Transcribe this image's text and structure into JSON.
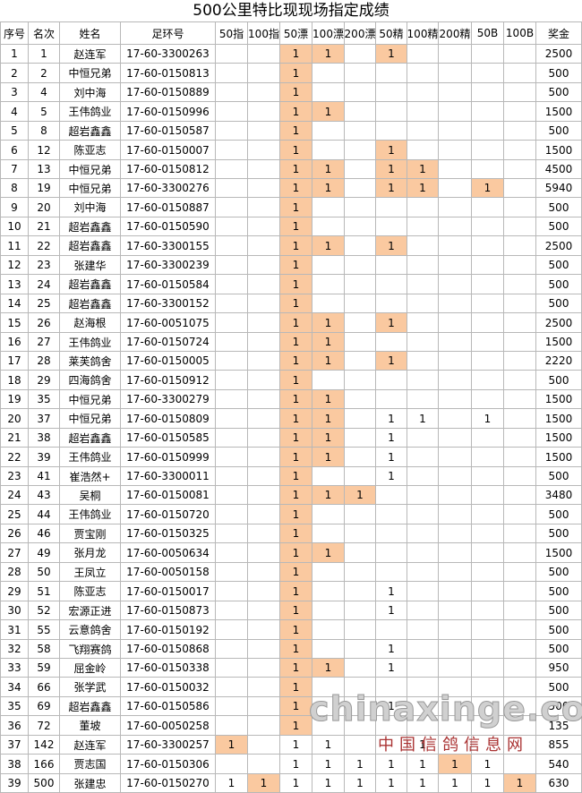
{
  "title": "500公里特比现现场指定成绩",
  "highlight_color": "#fac9a0",
  "table": {
    "header": [
      "序号",
      "名次",
      "姓名",
      "足环号",
      "50指",
      "100指",
      "50漂",
      "100漂",
      "200漂",
      "50精",
      "100精",
      "200精",
      "50B",
      "100B",
      "奖金"
    ],
    "rows": [
      {
        "cells": [
          "1",
          "1",
          "赵连军",
          "17-60-3300263",
          null,
          null,
          "1",
          "1",
          null,
          "1",
          null,
          null,
          null,
          null,
          "2500"
        ],
        "highlighted": [
          6,
          7,
          9
        ]
      },
      {
        "cells": [
          "2",
          "2",
          "中恒兄弟",
          "17-60-0150813",
          null,
          null,
          "1",
          null,
          null,
          null,
          null,
          null,
          null,
          null,
          "500"
        ],
        "highlighted": [
          6
        ]
      },
      {
        "cells": [
          "3",
          "4",
          "刘中海",
          "17-60-0150889",
          null,
          null,
          "1",
          null,
          null,
          null,
          null,
          null,
          null,
          null,
          "500"
        ],
        "highlighted": [
          6
        ]
      },
      {
        "cells": [
          "4",
          "5",
          "王伟鸽业",
          "17-60-0150996",
          null,
          null,
          "1",
          "1",
          null,
          null,
          null,
          null,
          null,
          null,
          "1500"
        ],
        "highlighted": [
          6,
          7
        ]
      },
      {
        "cells": [
          "5",
          "8",
          "超岩鑫鑫",
          "17-60-0150587",
          null,
          null,
          "1",
          null,
          null,
          null,
          null,
          null,
          null,
          null,
          "500"
        ],
        "highlighted": [
          6
        ]
      },
      {
        "cells": [
          "6",
          "12",
          "陈亚志",
          "17-60-0150007",
          null,
          null,
          "1",
          null,
          null,
          "1",
          null,
          null,
          null,
          null,
          "1500"
        ],
        "highlighted": [
          6,
          9
        ]
      },
      {
        "cells": [
          "7",
          "13",
          "中恒兄弟",
          "17-60-0150812",
          null,
          null,
          "1",
          "1",
          null,
          "1",
          "1",
          null,
          null,
          null,
          "4500"
        ],
        "highlighted": [
          6,
          7,
          9,
          10
        ]
      },
      {
        "cells": [
          "8",
          "19",
          "中恒兄弟",
          "17-60-3300276",
          null,
          null,
          "1",
          "1",
          null,
          "1",
          "1",
          null,
          "1",
          null,
          "5940"
        ],
        "highlighted": [
          6,
          7,
          9,
          10,
          12
        ]
      },
      {
        "cells": [
          "9",
          "20",
          "刘中海",
          "17-60-0150887",
          null,
          null,
          "1",
          null,
          null,
          null,
          null,
          null,
          null,
          null,
          "500"
        ],
        "highlighted": [
          6
        ]
      },
      {
        "cells": [
          "10",
          "21",
          "超岩鑫鑫",
          "17-60-0150590",
          null,
          null,
          "1",
          null,
          null,
          null,
          null,
          null,
          null,
          null,
          "500"
        ],
        "highlighted": [
          6
        ]
      },
      {
        "cells": [
          "11",
          "22",
          "超岩鑫鑫",
          "17-60-3300155",
          null,
          null,
          "1",
          "1",
          null,
          "1",
          null,
          null,
          null,
          null,
          "2500"
        ],
        "highlighted": [
          6,
          7,
          9
        ]
      },
      {
        "cells": [
          "12",
          "23",
          "张建华",
          "17-60-3300239",
          null,
          null,
          "1",
          null,
          null,
          null,
          null,
          null,
          null,
          null,
          "500"
        ],
        "highlighted": [
          6
        ]
      },
      {
        "cells": [
          "13",
          "24",
          "超岩鑫鑫",
          "17-60-0150584",
          null,
          null,
          "1",
          null,
          null,
          null,
          null,
          null,
          null,
          null,
          "500"
        ],
        "highlighted": [
          6
        ]
      },
      {
        "cells": [
          "14",
          "25",
          "超岩鑫鑫",
          "17-60-3300152",
          null,
          null,
          "1",
          null,
          null,
          null,
          null,
          null,
          null,
          null,
          "500"
        ],
        "highlighted": [
          6
        ]
      },
      {
        "cells": [
          "15",
          "26",
          "赵海根",
          "17-60-0051075",
          null,
          null,
          "1",
          "1",
          null,
          "1",
          null,
          null,
          null,
          null,
          "2500"
        ],
        "highlighted": [
          6,
          7,
          9
        ]
      },
      {
        "cells": [
          "16",
          "27",
          "王伟鸽业",
          "17-60-0150724",
          null,
          null,
          "1",
          "1",
          null,
          null,
          null,
          null,
          null,
          null,
          "1500"
        ],
        "highlighted": [
          6,
          7
        ]
      },
      {
        "cells": [
          "17",
          "28",
          "莱芙鸽舍",
          "17-60-0150005",
          null,
          null,
          "1",
          "1",
          null,
          "1",
          null,
          null,
          null,
          null,
          "2220"
        ],
        "highlighted": [
          6,
          7,
          9
        ]
      },
      {
        "cells": [
          "18",
          "29",
          "四海鸽舍",
          "17-60-0150912",
          null,
          null,
          "1",
          null,
          null,
          null,
          null,
          null,
          null,
          null,
          "500"
        ],
        "highlighted": [
          6
        ]
      },
      {
        "cells": [
          "19",
          "35",
          "中恒兄弟",
          "17-60-3300279",
          null,
          null,
          "1",
          "1",
          null,
          null,
          null,
          null,
          null,
          null,
          "1500"
        ],
        "highlighted": [
          6,
          7
        ]
      },
      {
        "cells": [
          "20",
          "37",
          "中恒兄弟",
          "17-60-0150809",
          null,
          null,
          "1",
          "1",
          null,
          "1",
          "1",
          null,
          "1",
          null,
          "1500"
        ],
        "highlighted": [
          6,
          7
        ]
      },
      {
        "cells": [
          "21",
          "38",
          "超岩鑫鑫",
          "17-60-0150585",
          null,
          null,
          "1",
          "1",
          null,
          "1",
          null,
          null,
          null,
          null,
          "1500"
        ],
        "highlighted": [
          6,
          7
        ]
      },
      {
        "cells": [
          "22",
          "39",
          "王伟鸽业",
          "17-60-0150999",
          null,
          null,
          "1",
          "1",
          null,
          "1",
          null,
          null,
          null,
          null,
          "1500"
        ],
        "highlighted": [
          6,
          7
        ]
      },
      {
        "cells": [
          "23",
          "41",
          "崔浩然+",
          "17-60-3300011",
          null,
          null,
          "1",
          null,
          null,
          "1",
          null,
          null,
          null,
          null,
          "500"
        ],
        "highlighted": [
          6
        ]
      },
      {
        "cells": [
          "24",
          "43",
          "吴桐",
          "17-60-0150081",
          null,
          null,
          "1",
          "1",
          "1",
          null,
          null,
          null,
          null,
          null,
          "3480"
        ],
        "highlighted": [
          6,
          7,
          8
        ]
      },
      {
        "cells": [
          "25",
          "44",
          "王伟鸽业",
          "17-60-0150720",
          null,
          null,
          "1",
          null,
          null,
          null,
          null,
          null,
          null,
          null,
          "500"
        ],
        "highlighted": [
          6
        ]
      },
      {
        "cells": [
          "26",
          "46",
          "贾宝刚",
          "17-60-0150325",
          null,
          null,
          "1",
          null,
          null,
          null,
          null,
          null,
          null,
          null,
          "500"
        ],
        "highlighted": [
          6
        ]
      },
      {
        "cells": [
          "27",
          "49",
          "张月龙",
          "17-60-0050634",
          null,
          null,
          "1",
          "1",
          null,
          null,
          null,
          null,
          null,
          null,
          "1500"
        ],
        "highlighted": [
          6,
          7
        ]
      },
      {
        "cells": [
          "28",
          "50",
          "王凤立",
          "17-60-0050158",
          null,
          null,
          "1",
          null,
          null,
          null,
          null,
          null,
          null,
          null,
          "500"
        ],
        "highlighted": [
          6
        ]
      },
      {
        "cells": [
          "29",
          "51",
          "陈亚志",
          "17-60-0150017",
          null,
          null,
          "1",
          null,
          null,
          "1",
          null,
          null,
          null,
          null,
          "500"
        ],
        "highlighted": [
          6
        ]
      },
      {
        "cells": [
          "30",
          "52",
          "宏源正进",
          "17-60-0150873",
          null,
          null,
          "1",
          null,
          null,
          "1",
          null,
          null,
          null,
          null,
          "500"
        ],
        "highlighted": [
          6
        ]
      },
      {
        "cells": [
          "31",
          "55",
          "云意鸽舍",
          "17-60-0150192",
          null,
          null,
          "1",
          null,
          null,
          null,
          null,
          null,
          null,
          null,
          "500"
        ],
        "highlighted": [
          6
        ]
      },
      {
        "cells": [
          "32",
          "58",
          "飞翔赛鸽",
          "17-60-0150868",
          null,
          null,
          "1",
          null,
          null,
          "1",
          null,
          null,
          null,
          null,
          "500"
        ],
        "highlighted": [
          6
        ]
      },
      {
        "cells": [
          "33",
          "59",
          "屈金岭",
          "17-60-0150338",
          null,
          null,
          "1",
          "1",
          null,
          "1",
          null,
          null,
          null,
          null,
          "950"
        ],
        "highlighted": [
          6,
          7
        ]
      },
      {
        "cells": [
          "34",
          "66",
          "张学武",
          "17-60-0150032",
          null,
          null,
          "1",
          null,
          null,
          null,
          null,
          null,
          null,
          null,
          "500"
        ],
        "highlighted": [
          6
        ]
      },
      {
        "cells": [
          "35",
          "69",
          "超岩鑫鑫",
          "17-60-0150586",
          null,
          null,
          "1",
          null,
          null,
          "1",
          null,
          null,
          null,
          null,
          "500"
        ],
        "highlighted": [
          6
        ]
      },
      {
        "cells": [
          "36",
          "72",
          "董坡",
          "17-60-0050258",
          null,
          null,
          "1",
          null,
          null,
          null,
          null,
          null,
          null,
          null,
          "135"
        ],
        "highlighted": [
          6
        ]
      },
      {
        "cells": [
          "37",
          "142",
          "赵连军",
          "17-60-3300257",
          "1",
          null,
          "1",
          "1",
          null,
          null,
          "1",
          null,
          null,
          null,
          "855"
        ],
        "highlighted": [
          4
        ]
      },
      {
        "cells": [
          "38",
          "166",
          "贾志国",
          "17-60-0150306",
          null,
          null,
          "1",
          "1",
          "1",
          "1",
          "1",
          "1",
          "1",
          null,
          "540"
        ],
        "highlighted": [
          11
        ]
      },
      {
        "cells": [
          "39",
          "500",
          "张建忠",
          "17-60-0150270",
          "1",
          "1",
          "1",
          "1",
          "1",
          "1",
          "1",
          "1",
          "1",
          "1",
          "630"
        ],
        "highlighted": [
          5,
          13
        ]
      }
    ]
  },
  "watermark": {
    "site": "chinaxinge.com",
    "name": "中国信鸽信息网"
  }
}
